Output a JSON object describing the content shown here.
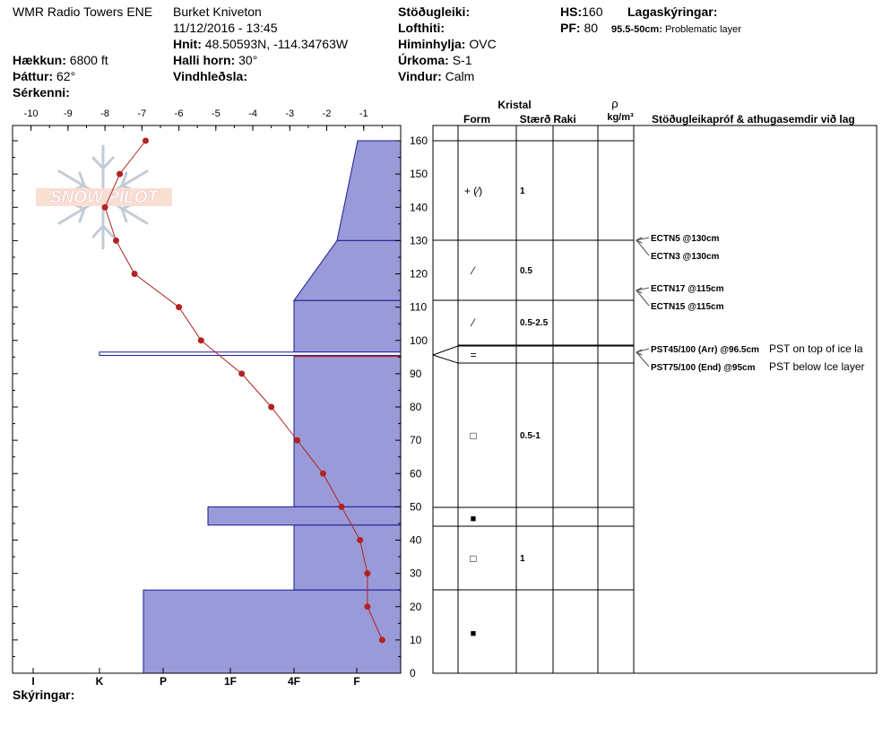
{
  "header": {
    "location": "WMR Radio Towers ENE",
    "observer": "Burket Kniveton",
    "datetime": "11/12/2016 - 13:45",
    "coords_label": "Hnit:",
    "coords_value": "48.50593N, -114.34763W",
    "elevation_label": "Hækkun:",
    "elevation_value": "6800 ft",
    "aspect_label": "Þáttur:",
    "aspect_value": "62°",
    "features_label": "Sérkenni:",
    "slope_label": "Halli horn:",
    "slope_value": "30°",
    "wind_loading_label": "Vindhleðsla:",
    "stability_label": "Stöðugleiki:",
    "air_temp_label": "Lofthiti:",
    "sky_label": "Himinhylja:",
    "sky_value": "OVC",
    "precip_label": "Úrkoma:",
    "precip_value": "S-1",
    "wind_label": "Vindur:",
    "wind_value": "Calm",
    "hs_label": "HS:",
    "hs_value": "160",
    "pf_label": "PF:",
    "pf_value": "80",
    "layer_notes_label": "Lagaskýringar:",
    "layer_note_range": "95.5-50cm:",
    "layer_note_text": "Problematic layer"
  },
  "logo": {
    "text": "SNOW PILOT"
  },
  "footer": {
    "legend_label": "Skýringar:"
  },
  "table": {
    "crystal_header": "Kristal",
    "form_header": "Form",
    "size_header": "Stærð",
    "moisture_header": "Raki",
    "density_symbol": "ρ",
    "density_unit": "kg/m³",
    "tests_header": "Stöðugleikapróf & athugasemdir við lag",
    "layers": [
      {
        "form": "+ (⁄)",
        "size": "1"
      },
      {
        "form": "⁄",
        "size": "0.5"
      },
      {
        "form": "⁄",
        "size": "0.5-2.5"
      },
      {
        "form": "=",
        "size": ""
      },
      {
        "form": "□",
        "size": "0.5-1"
      },
      {
        "form": "■",
        "size": ""
      },
      {
        "form": "□",
        "size": "1"
      },
      {
        "form": "■",
        "size": ""
      }
    ],
    "tests": [
      {
        "text": "ECTN5 @130cm",
        "note": ""
      },
      {
        "text": "ECTN3 @130cm",
        "note": ""
      },
      {
        "text": "ECTN17 @115cm",
        "note": ""
      },
      {
        "text": "ECTN15 @115cm",
        "note": ""
      },
      {
        "text": "PST45/100 (Arr) @96.5cm",
        "note": "PST on top of ice la"
      },
      {
        "text": "PST75/100 (End) @95cm",
        "note": "PST below Ice layer"
      }
    ]
  },
  "chart_data": {
    "type": "line",
    "title": "",
    "x_axis_top": {
      "label": "",
      "range": [
        -10,
        0
      ],
      "ticks": [
        "-10",
        "-9",
        "-8",
        "-7",
        "-6",
        "-5",
        "-4",
        "-3",
        "-2",
        "-1"
      ]
    },
    "x_axis_bottom": {
      "label": "",
      "ticks": [
        "I",
        "K",
        "P",
        "1F",
        "4F",
        "F"
      ]
    },
    "y_axis": {
      "label": "",
      "range": [
        0,
        165
      ],
      "ticks": [
        "0",
        "10",
        "20",
        "30",
        "40",
        "50",
        "60",
        "70",
        "80",
        "90",
        "100",
        "110",
        "120",
        "130",
        "140",
        "150",
        "160"
      ]
    },
    "temperature_profile": {
      "color": "#b22222",
      "points": [
        {
          "depth": 160,
          "temp": -6.9
        },
        {
          "depth": 150,
          "temp": -7.6
        },
        {
          "depth": 140,
          "temp": -8.0
        },
        {
          "depth": 130,
          "temp": -7.7
        },
        {
          "depth": 120,
          "temp": -7.2
        },
        {
          "depth": 110,
          "temp": -6.0
        },
        {
          "depth": 100,
          "temp": -5.4
        },
        {
          "depth": 90,
          "temp": -4.3
        },
        {
          "depth": 80,
          "temp": -3.5
        },
        {
          "depth": 70,
          "temp": -2.8
        },
        {
          "depth": 60,
          "temp": -2.1
        },
        {
          "depth": 50,
          "temp": -1.6
        },
        {
          "depth": 40,
          "temp": -1.1
        },
        {
          "depth": 30,
          "temp": -0.9
        },
        {
          "depth": 20,
          "temp": -0.9
        },
        {
          "depth": 10,
          "temp": -0.5
        }
      ]
    },
    "hardness_profile": {
      "fill": "#9a9ad8",
      "stroke": "#1a1a9a",
      "scale": [
        "I",
        "K",
        "P",
        "1F",
        "4F",
        "F"
      ],
      "layers": [
        {
          "top": 160,
          "bottom": 130,
          "hardness_top": "F",
          "hardness_bottom": "1F+"
        },
        {
          "top": 130,
          "bottom": 112,
          "hardness_top": "1F+",
          "hardness_bottom": "4F"
        },
        {
          "top": 112,
          "bottom": 96.5,
          "hardness_top": "4F",
          "hardness_bottom": "4F-"
        },
        {
          "top": 96.5,
          "bottom": 95.5,
          "hardness": "K+",
          "note": "ice layer"
        },
        {
          "top": 95.5,
          "bottom": 50,
          "hardness": "4F-"
        },
        {
          "top": 50,
          "bottom": 44.5,
          "hardness": "1F-"
        },
        {
          "top": 44.5,
          "bottom": 25,
          "hardness": "4F-"
        },
        {
          "top": 25,
          "bottom": 0,
          "hardness": "P-"
        }
      ]
    }
  }
}
